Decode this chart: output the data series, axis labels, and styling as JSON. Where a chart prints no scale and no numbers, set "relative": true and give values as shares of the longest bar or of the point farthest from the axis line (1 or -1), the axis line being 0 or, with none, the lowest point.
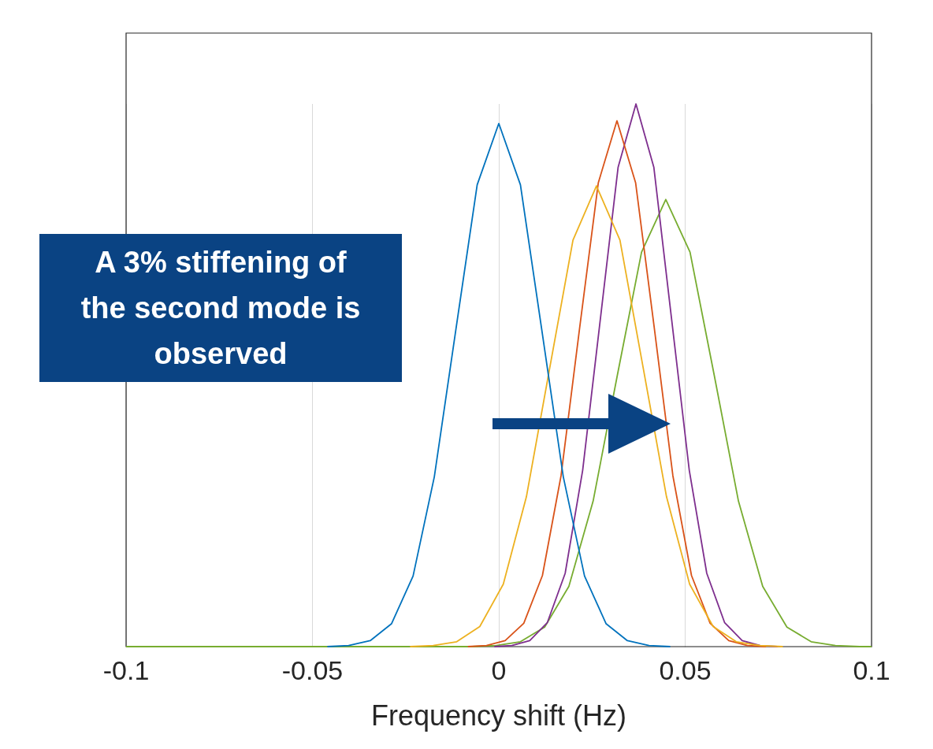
{
  "chart_data": {
    "type": "line",
    "relative": true,
    "xlabel": "Frequency shift (Hz)",
    "xlim": [
      -0.1,
      0.1
    ],
    "xticks": [
      -0.1,
      -0.05,
      0,
      0.05,
      0.1
    ],
    "grid": "x",
    "legend": false,
    "annotations": [
      "A 3% stiffening of the second mode is observed"
    ],
    "series": [
      {
        "color": "#0072bd",
        "x": [
          -0.046,
          -0.0403,
          -0.0345,
          -0.0288,
          -0.023,
          -0.0173,
          -0.0115,
          -0.0058,
          0,
          0.0058,
          0.0115,
          0.0173,
          0.023,
          0.0288,
          0.0345,
          0.0403,
          0.046
        ],
        "values": [
          0,
          0.002,
          0.011,
          0.042,
          0.13,
          0.313,
          0.585,
          0.851,
          0.964,
          0.851,
          0.585,
          0.313,
          0.13,
          0.042,
          0.011,
          0.002,
          0
        ]
      },
      {
        "color": "#edb120",
        "x": [
          -0.0238,
          -0.0176,
          -0.0113,
          -0.0051,
          0.0012,
          0.0074,
          0.0137,
          0.0199,
          0.0262,
          0.0325,
          0.0387,
          0.045,
          0.0512,
          0.0575,
          0.0637,
          0.07,
          0.0762
        ],
        "values": [
          0,
          0.002,
          0.009,
          0.037,
          0.115,
          0.276,
          0.515,
          0.749,
          0.849,
          0.749,
          0.515,
          0.276,
          0.115,
          0.037,
          0.009,
          0.002,
          0
        ]
      },
      {
        "color": "#d95319",
        "x": [
          -0.0083,
          -0.0033,
          0.0017,
          0.0067,
          0.0117,
          0.0167,
          0.0217,
          0.0267,
          0.0317,
          0.0367,
          0.0417,
          0.0467,
          0.0517,
          0.0567,
          0.0617,
          0.0667,
          0.0717
        ],
        "values": [
          0,
          0.002,
          0.011,
          0.043,
          0.131,
          0.315,
          0.588,
          0.855,
          0.969,
          0.855,
          0.588,
          0.315,
          0.131,
          0.043,
          0.011,
          0.002,
          0
        ]
      },
      {
        "color": "#7e2f8e",
        "x": [
          -0.0012,
          0.0035,
          0.0083,
          0.013,
          0.0178,
          0.0225,
          0.0273,
          0.032,
          0.0368,
          0.0416,
          0.0463,
          0.0511,
          0.0558,
          0.0606,
          0.0653,
          0.0701,
          0.0748
        ],
        "values": [
          0,
          0.002,
          0.011,
          0.044,
          0.135,
          0.325,
          0.607,
          0.883,
          1,
          0.883,
          0.607,
          0.325,
          0.135,
          0.044,
          0.011,
          0.002,
          0
        ]
      },
      {
        "color": "#77ac30",
        "x": [
          -0.1,
          -0.0072,
          -0.0007,
          0.0058,
          0.0123,
          0.0188,
          0.0253,
          0.0318,
          0.0383,
          0.0448,
          0.0513,
          0.0578,
          0.0643,
          0.0708,
          0.0773,
          0.0838,
          0.0903,
          0.0968,
          0.1
        ],
        "values": [
          0,
          0,
          0.002,
          0.009,
          0.036,
          0.111,
          0.268,
          0.5,
          0.727,
          0.824,
          0.727,
          0.5,
          0.268,
          0.111,
          0.036,
          0.009,
          0.002,
          0,
          0
        ]
      }
    ]
  }
}
